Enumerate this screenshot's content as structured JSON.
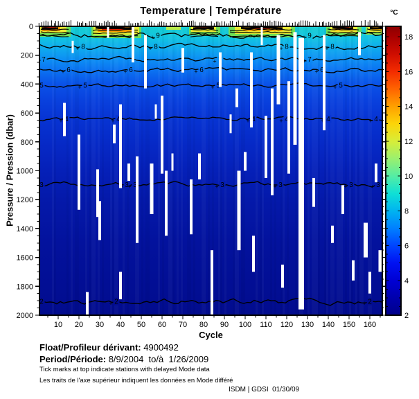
{
  "title": "Temperature | Température",
  "axes": {
    "x": {
      "label": "Cycle"
    },
    "y": {
      "label": "Pressure / Pression (dbar)"
    }
  },
  "footer": {
    "float_label": "Float/Profileur dérivant:",
    "float_value": " 4900492",
    "period_label": "Period/Période:",
    "period_value": " 8/9/2004  to/à  1/26/2009",
    "note_en": "Tick marks at top indicate stations with delayed Mode data",
    "note_fr": "Les traits de l'axe supérieur indiquent les données en Mode différé",
    "credit": "ISDM | GDSI  01/30/09"
  },
  "chart_data": {
    "type": "heatmap",
    "title": "Temperature | Température",
    "xlabel": "Cycle",
    "ylabel": "Pressure / Pression (dbar)",
    "xlim": [
      1,
      166
    ],
    "ylim": [
      2000,
      0
    ],
    "x_ticks": [
      10,
      20,
      30,
      40,
      50,
      60,
      70,
      80,
      90,
      100,
      110,
      120,
      130,
      140,
      150,
      160
    ],
    "y_ticks": [
      0,
      200,
      400,
      600,
      800,
      1000,
      1200,
      1400,
      1600,
      1800,
      2000
    ],
    "grid": false,
    "legend_position": "colorbar-right",
    "colorbar": {
      "unit": "°C",
      "ticks": [
        2,
        4,
        6,
        8,
        10,
        12,
        14,
        16,
        18
      ],
      "vmin": 2,
      "vmax": 18.6,
      "minor_step": 0.5,
      "stops": [
        {
          "v": 2.0,
          "c": "#00008a"
        },
        {
          "v": 3.0,
          "c": "#0000ad"
        },
        {
          "v": 4.0,
          "c": "#0000d4"
        },
        {
          "v": 5.0,
          "c": "#0012f2"
        },
        {
          "v": 6.0,
          "c": "#0045ff"
        },
        {
          "v": 7.0,
          "c": "#0080ff"
        },
        {
          "v": 8.0,
          "c": "#00b4f0"
        },
        {
          "v": 9.0,
          "c": "#0fe0d5"
        },
        {
          "v": 10.0,
          "c": "#55eda4"
        },
        {
          "v": 11.0,
          "c": "#9bf06e"
        },
        {
          "v": 12.0,
          "c": "#d8ed38"
        },
        {
          "v": 13.0,
          "c": "#fcd408"
        },
        {
          "v": 14.0,
          "c": "#ffa000"
        },
        {
          "v": 15.0,
          "c": "#ff6400"
        },
        {
          "v": 16.0,
          "c": "#f32c00"
        },
        {
          "v": 17.0,
          "c": "#cf0d00"
        },
        {
          "v": 18.0,
          "c": "#a80000"
        },
        {
          "v": 18.6,
          "c": "#8c0000"
        }
      ]
    },
    "background_profile": [
      {
        "p": 0,
        "c": "#17cfd0"
      },
      {
        "p": 80,
        "c": "#12c3e2"
      },
      {
        "p": 150,
        "c": "#0facee"
      },
      {
        "p": 230,
        "c": "#0d8ef4"
      },
      {
        "p": 300,
        "c": "#0b74f2"
      },
      {
        "p": 400,
        "c": "#0a52e8"
      },
      {
        "p": 520,
        "c": "#0940dd"
      },
      {
        "p": 650,
        "c": "#0733d2"
      },
      {
        "p": 820,
        "c": "#0629c6"
      },
      {
        "p": 1000,
        "c": "#0520b8"
      },
      {
        "p": 1200,
        "c": "#0419aa"
      },
      {
        "p": 1500,
        "c": "#03129d"
      },
      {
        "p": 1800,
        "c": "#020e94"
      },
      {
        "p": 2000,
        "c": "#020c8e"
      }
    ],
    "contours": [
      {
        "level": 9,
        "pressure": 62,
        "amp": 9,
        "labels": [
          58,
          131
        ]
      },
      {
        "level": 8,
        "pressure": 140,
        "amp": 8,
        "labels": [
          22,
          57,
          120,
          142
        ]
      },
      {
        "level": 7,
        "pressure": 228,
        "amp": 7,
        "labels": [
          3,
          88,
          131
        ]
      },
      {
        "level": 6,
        "pressure": 300,
        "amp": 7,
        "labels": [
          15,
          45,
          79,
          137
        ]
      },
      {
        "level": 5,
        "pressure": 408,
        "amp": 6,
        "labels": [
          2,
          23,
          87,
          146
        ]
      },
      {
        "level": 4,
        "pressure": 640,
        "amp": 6,
        "labels": [
          14,
          39,
          104,
          120,
          140,
          163
        ]
      },
      {
        "level": 3,
        "pressure": 1095,
        "amp": 7,
        "labels": [
          2,
          43,
          47,
          89,
          117,
          151,
          164
        ]
      },
      {
        "level": 2,
        "pressure": 1905,
        "amp": 9,
        "labels": [
          2,
          38,
          160
        ]
      }
    ],
    "surface_patches": [
      {
        "cycles": [
          1,
          16
        ],
        "dense": true,
        "core": [
          2,
          11
        ],
        "layers": [
          [
            1,
            16,
            15,
            "#6edd55"
          ],
          [
            1,
            14,
            10,
            "#e8e832"
          ],
          [
            2,
            11,
            7,
            "#ff9f00"
          ],
          [
            3,
            9,
            4,
            "#e81800"
          ]
        ]
      },
      {
        "cycles": [
          26,
          50
        ],
        "dense": true,
        "core": [
          28,
          46
        ],
        "layers": [
          [
            26,
            50,
            17,
            "#6edd55"
          ],
          [
            27,
            49,
            12,
            "#e8e832"
          ],
          [
            29,
            46,
            8,
            "#ff9f00"
          ],
          [
            31,
            42,
            5,
            "#e81800"
          ],
          [
            33,
            39,
            3,
            "#9c0000"
          ]
        ]
      },
      {
        "cycles": [
          62,
          69
        ],
        "dense": false,
        "layers": [
          [
            62,
            69,
            5,
            "#b9ea49"
          ]
        ]
      },
      {
        "cycles": [
          73,
          88
        ],
        "dense": true,
        "core": [
          75,
          85
        ],
        "layers": [
          [
            73,
            88,
            13,
            "#6edd55"
          ],
          [
            74,
            86,
            8,
            "#e8e832"
          ],
          [
            76,
            84,
            4,
            "#f03000"
          ]
        ]
      },
      {
        "cycles": [
          92,
          124
        ],
        "dense": true,
        "core": [
          98,
          118
        ],
        "layers": [
          [
            92,
            124,
            16,
            "#6edd55"
          ],
          [
            95,
            122,
            11,
            "#e8e832"
          ],
          [
            99,
            118,
            7,
            "#ffae00"
          ],
          [
            103,
            112,
            4,
            "#ee2000"
          ]
        ]
      },
      {
        "cycles": [
          139,
          156
        ],
        "dense": true,
        "core": [
          142,
          152
        ],
        "layers": [
          [
            139,
            156,
            14,
            "#6edd55"
          ],
          [
            141,
            154,
            10,
            "#e8e832"
          ],
          [
            143,
            152,
            6,
            "#ff9f00"
          ],
          [
            145,
            150,
            4,
            "#e81800"
          ]
        ]
      },
      {
        "cycles": [
          158,
          166
        ],
        "dense": true,
        "core": [
          160,
          166
        ],
        "layers": [
          [
            158,
            166,
            12,
            "#8ae04e"
          ],
          [
            159,
            166,
            8,
            "#e8e832"
          ],
          [
            161,
            166,
            5,
            "#ffae00"
          ]
        ]
      }
    ],
    "missing_profiles": [
      [
        13,
        530,
        760,
        4
      ],
      [
        17,
        100,
        185,
        3
      ],
      [
        20,
        750,
        1270,
        4
      ],
      [
        24,
        1840,
        2000,
        4
      ],
      [
        29,
        990,
        1320,
        4
      ],
      [
        30,
        1210,
        1480,
        4
      ],
      [
        34,
        0,
        80,
        3
      ],
      [
        37,
        680,
        810,
        4
      ],
      [
        40,
        540,
        1120,
        4
      ],
      [
        40,
        1700,
        1890,
        4
      ],
      [
        44,
        950,
        1070,
        4
      ],
      [
        46,
        0,
        250,
        4
      ],
      [
        48,
        900,
        1500,
        4
      ],
      [
        52,
        60,
        430,
        4
      ],
      [
        55,
        950,
        1300,
        5
      ],
      [
        57,
        540,
        640,
        3
      ],
      [
        60,
        480,
        1020,
        4
      ],
      [
        62,
        1000,
        1450,
        4
      ],
      [
        65,
        880,
        1000,
        3
      ],
      [
        70,
        150,
        320,
        4
      ],
      [
        74,
        1060,
        1440,
        4
      ],
      [
        78,
        880,
        1060,
        4
      ],
      [
        84,
        1550,
        2000,
        4
      ],
      [
        88,
        180,
        420,
        4
      ],
      [
        93,
        610,
        740,
        3
      ],
      [
        96,
        430,
        560,
        4
      ],
      [
        97,
        1000,
        1550,
        5
      ],
      [
        100,
        870,
        1000,
        4
      ],
      [
        103,
        180,
        700,
        4
      ],
      [
        104,
        1450,
        1700,
        4
      ],
      [
        108,
        0,
        130,
        3
      ],
      [
        110,
        620,
        1050,
        4
      ],
      [
        113,
        430,
        1170,
        4
      ],
      [
        116,
        60,
        540,
        5
      ],
      [
        118,
        1650,
        1810,
        4
      ],
      [
        121,
        380,
        1020,
        4
      ],
      [
        124,
        40,
        820,
        5
      ],
      [
        127,
        80,
        1960,
        8
      ],
      [
        133,
        1050,
        1250,
        4
      ],
      [
        138,
        60,
        720,
        4
      ],
      [
        142,
        1380,
        1500,
        4
      ],
      [
        147,
        1100,
        1300,
        4
      ],
      [
        152,
        1620,
        1760,
        4
      ],
      [
        155,
        40,
        200,
        4
      ],
      [
        158,
        1360,
        1600,
        6
      ],
      [
        160,
        1700,
        1850,
        4
      ],
      [
        163,
        950,
        1080,
        4
      ],
      [
        165,
        1550,
        1700,
        5
      ]
    ]
  }
}
